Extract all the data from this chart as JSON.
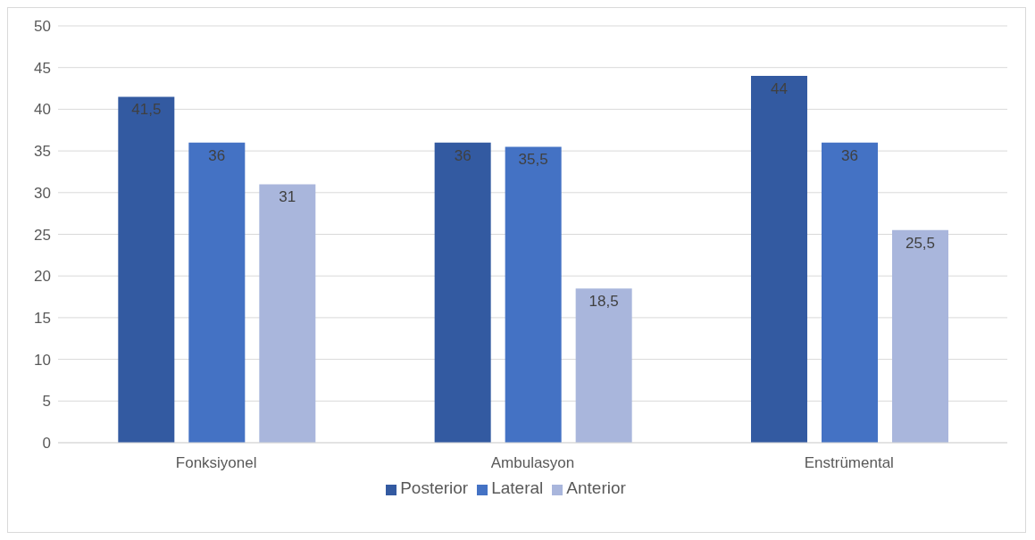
{
  "chart_data": {
    "type": "bar",
    "categories": [
      "Fonksiyonel",
      "Ambulasyon",
      "Enstrümental"
    ],
    "series": [
      {
        "name": "Posterior",
        "color": "#335aa1",
        "values": [
          41.5,
          36,
          44
        ],
        "value_labels": [
          "41,5",
          "36",
          "44"
        ]
      },
      {
        "name": "Lateral",
        "color": "#4472c4",
        "values": [
          36,
          35.5,
          36
        ],
        "value_labels": [
          "36",
          "35,5",
          "36"
        ]
      },
      {
        "name": "Anterior",
        "color": "#a9b6dc",
        "values": [
          31,
          18.5,
          25.5
        ],
        "value_labels": [
          "31",
          "18,5",
          "25,5"
        ]
      }
    ],
    "ylim": [
      0,
      50
    ],
    "yticks": [
      0,
      5,
      10,
      15,
      20,
      25,
      30,
      35,
      40,
      45,
      50
    ],
    "grid": "y",
    "legend": "bottom"
  }
}
